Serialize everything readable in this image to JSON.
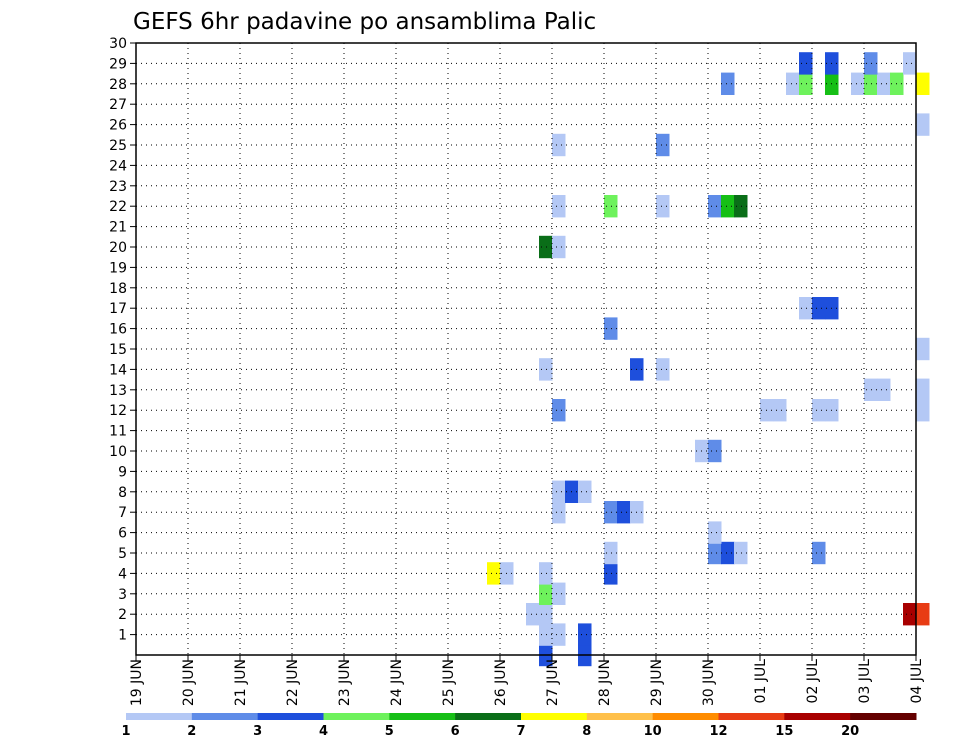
{
  "chart_data": {
    "type": "heatmap",
    "title": "GEFS 6hr padavine po ansamblima Palic",
    "x_tick_labels": [
      "19 JUN",
      "20 JUN",
      "21 JUN",
      "22 JUN",
      "23 JUN",
      "24 JUN",
      "25 JUN",
      "26 JUN",
      "27 JUN",
      "28 JUN",
      "29 JUN",
      "30 JUN",
      "01 JUL",
      "02 JUL",
      "03 JUL",
      "04 JUL"
    ],
    "y_tick_labels": [
      "1",
      "2",
      "3",
      "4",
      "5",
      "6",
      "7",
      "8",
      "9",
      "10",
      "11",
      "12",
      "13",
      "14",
      "15",
      "16",
      "17",
      "18",
      "19",
      "20",
      "21",
      "22",
      "23",
      "24",
      "25",
      "26",
      "27",
      "28",
      "29",
      "30"
    ],
    "y_range": [
      0,
      30
    ],
    "x_range_days": [
      0,
      15
    ],
    "grid": true,
    "legend": {
      "position": "bottom",
      "labels": [
        "1",
        "2",
        "3",
        "4",
        "5",
        "6",
        "7",
        "8",
        "10",
        "12",
        "15",
        "20"
      ],
      "colors": [
        "#b4c8f5",
        "#5f8ce8",
        "#1e4fdc",
        "#6ef25c",
        "#16bf16",
        "#0a6e18",
        "#ffff00",
        "#ffc04a",
        "#ff8c00",
        "#e83c14",
        "#a80000",
        "#640000"
      ]
    },
    "cells_note": "each cell = [day offset from 19 JUN (6hr steps of 0.25), ensemble member, color class index 0-11]",
    "cells": [
      [
        7.75,
        0,
        2
      ],
      [
        8.5,
        0,
        2
      ],
      [
        7.75,
        1,
        0
      ],
      [
        8.0,
        1,
        0
      ],
      [
        8.5,
        1,
        2
      ],
      [
        7.5,
        2,
        0
      ],
      [
        7.75,
        2,
        0
      ],
      [
        14.75,
        2,
        10
      ],
      [
        15.0,
        2,
        9
      ],
      [
        7.75,
        3,
        3
      ],
      [
        8.0,
        3,
        0
      ],
      [
        6.75,
        4,
        6
      ],
      [
        7.0,
        4,
        0
      ],
      [
        7.75,
        4,
        0
      ],
      [
        9.0,
        4,
        2
      ],
      [
        9.0,
        5,
        0
      ],
      [
        11.0,
        5,
        1
      ],
      [
        11.25,
        5,
        2
      ],
      [
        11.5,
        5,
        0
      ],
      [
        13.0,
        5,
        1
      ],
      [
        11.0,
        6,
        0
      ],
      [
        8.0,
        7,
        0
      ],
      [
        9.0,
        7,
        1
      ],
      [
        9.25,
        7,
        2
      ],
      [
        9.5,
        7,
        0
      ],
      [
        8.0,
        8,
        0
      ],
      [
        8.25,
        8,
        2
      ],
      [
        8.5,
        8,
        0
      ],
      [
        10.75,
        10,
        0
      ],
      [
        11.0,
        10,
        1
      ],
      [
        8.0,
        12,
        1
      ],
      [
        12.0,
        12,
        0
      ],
      [
        12.25,
        12,
        0
      ],
      [
        13.0,
        12,
        0
      ],
      [
        13.25,
        12,
        0
      ],
      [
        15.0,
        12,
        0
      ],
      [
        14.0,
        13,
        0
      ],
      [
        14.25,
        13,
        0
      ],
      [
        15.0,
        13,
        0
      ],
      [
        7.75,
        14,
        0
      ],
      [
        9.5,
        14,
        2
      ],
      [
        10.0,
        14,
        0
      ],
      [
        15.0,
        15,
        0
      ],
      [
        9.0,
        16,
        1
      ],
      [
        12.75,
        17,
        0
      ],
      [
        13.0,
        17,
        2
      ],
      [
        13.25,
        17,
        2
      ],
      [
        7.75,
        20,
        5
      ],
      [
        8.0,
        20,
        0
      ],
      [
        8.0,
        22,
        0
      ],
      [
        9.0,
        22,
        3
      ],
      [
        10.0,
        22,
        0
      ],
      [
        11.0,
        22,
        1
      ],
      [
        11.25,
        22,
        4
      ],
      [
        11.5,
        22,
        5
      ],
      [
        8.0,
        25,
        0
      ],
      [
        10.0,
        25,
        1
      ],
      [
        15.0,
        26,
        0
      ],
      [
        11.25,
        28,
        1
      ],
      [
        12.5,
        28,
        0
      ],
      [
        12.75,
        28,
        3
      ],
      [
        13.25,
        28,
        4
      ],
      [
        13.75,
        28,
        0
      ],
      [
        14.0,
        28,
        3
      ],
      [
        14.25,
        28,
        0
      ],
      [
        14.5,
        28,
        3
      ],
      [
        15.0,
        28,
        6
      ],
      [
        12.75,
        29,
        2
      ],
      [
        13.25,
        29,
        2
      ],
      [
        14.0,
        29,
        1
      ],
      [
        14.75,
        29,
        0
      ]
    ]
  }
}
